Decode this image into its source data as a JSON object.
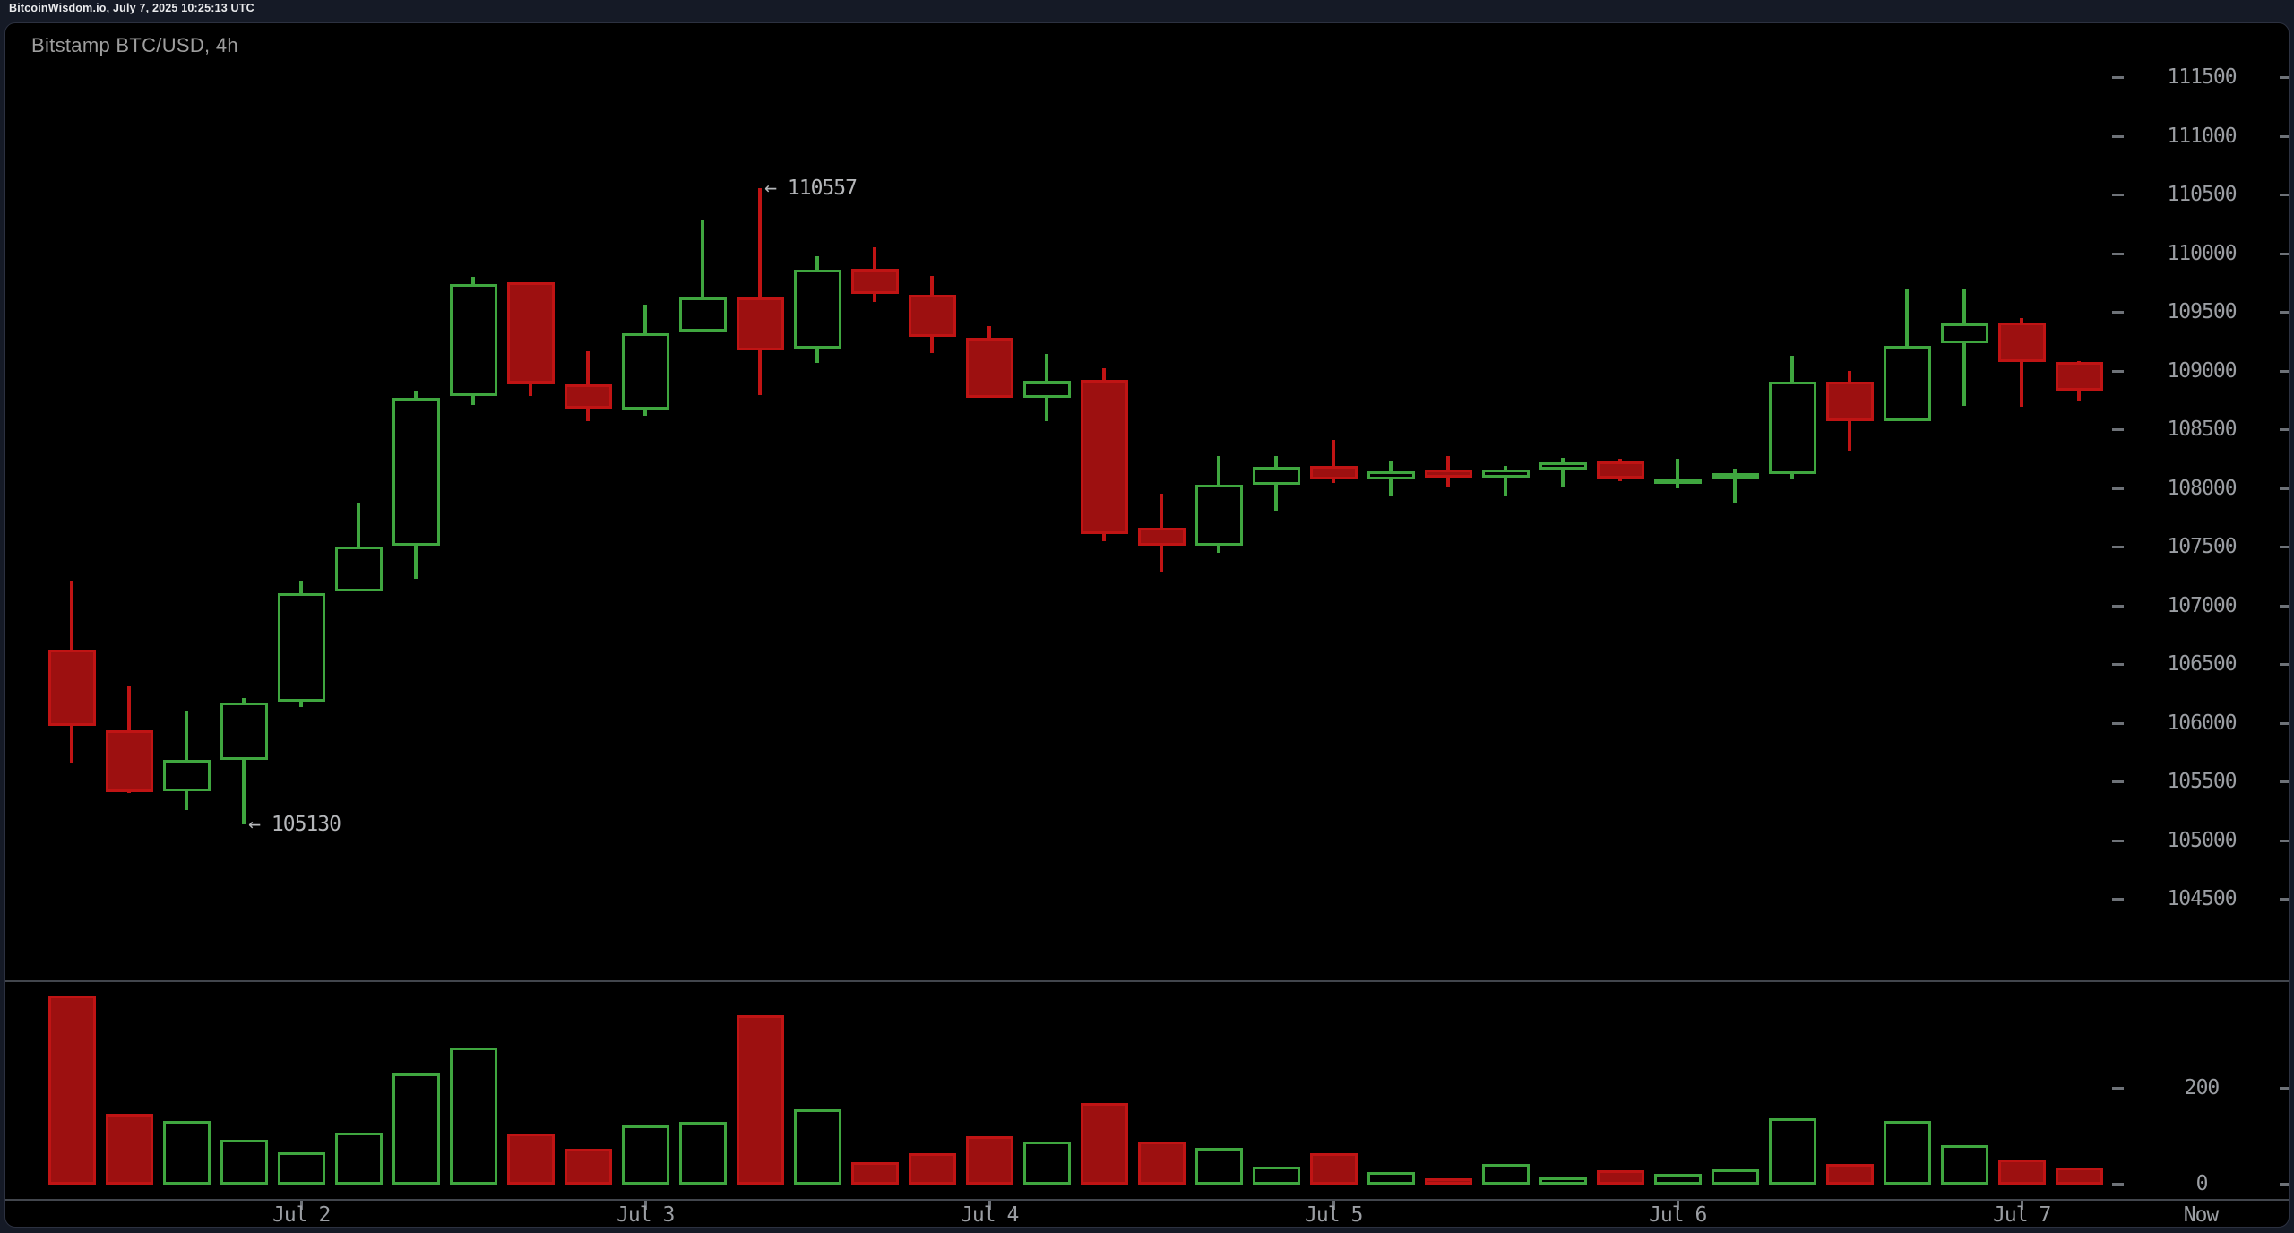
{
  "status_bar": {
    "text": "BitcoinWisdom.io, July 7, 2025 10:25:13 UTC"
  },
  "chart": {
    "title": "Bitstamp BTC/USD, 4h"
  },
  "colors": {
    "up_green": "#3fa63f",
    "down_red_border": "#c01414",
    "down_red_fill": "#9d1010",
    "background": "#000000",
    "page_background": "#151a26",
    "axis_text": "#9b9ea3",
    "separator": "#42464d",
    "annotation_text": "#b5b7ba"
  },
  "chart_data": {
    "type": "candlestick_with_volume",
    "title": "Bitstamp BTC/USD, 4h",
    "timeframe": "4h",
    "grid": "off",
    "legend": "none",
    "y_axis": {
      "side": "right",
      "range": [
        104100,
        111800
      ],
      "tick_step": 500,
      "tick_labels": [
        111500,
        111000,
        110500,
        110000,
        109500,
        109000,
        108500,
        108000,
        107500,
        107000,
        106500,
        106000,
        105500,
        105000,
        104500
      ]
    },
    "volume_axis": {
      "side": "right",
      "tick_labels": [
        200,
        0
      ]
    },
    "x_axis": {
      "day_labels": [
        {
          "label": "Jul 2",
          "candle_index": 5
        },
        {
          "label": "Jul 3",
          "candle_index": 11
        },
        {
          "label": "Jul 4",
          "candle_index": 17
        },
        {
          "label": "Jul 5",
          "candle_index": 23
        },
        {
          "label": "Jul 6",
          "candle_index": 29
        },
        {
          "label": "Jul 7",
          "candle_index": 35
        }
      ],
      "now_label": "Now"
    },
    "annotations": [
      {
        "text": "← 110557",
        "price": 110557,
        "candle_index": 13,
        "anchor": "high"
      },
      {
        "text": "← 105130",
        "price": 105130,
        "candle_index": 4,
        "anchor": "low"
      }
    ],
    "candles": [
      {
        "open": 106620,
        "high": 107210,
        "low": 105660,
        "close": 105975,
        "dir": "down",
        "volume": 393
      },
      {
        "open": 105935,
        "high": 106310,
        "low": 105400,
        "close": 105410,
        "dir": "down",
        "volume": 145
      },
      {
        "open": 105415,
        "high": 106105,
        "low": 105255,
        "close": 105685,
        "dir": "up",
        "volume": 130
      },
      {
        "open": 105685,
        "high": 106210,
        "low": 105130,
        "close": 106170,
        "dir": "up",
        "volume": 92
      },
      {
        "open": 106180,
        "high": 107210,
        "low": 106135,
        "close": 107105,
        "dir": "up",
        "volume": 65
      },
      {
        "open": 107120,
        "high": 107875,
        "low": 107120,
        "close": 107500,
        "dir": "up",
        "volume": 107
      },
      {
        "open": 107510,
        "high": 108830,
        "low": 107225,
        "close": 108765,
        "dir": "up",
        "volume": 230
      },
      {
        "open": 108780,
        "high": 109800,
        "low": 108705,
        "close": 109735,
        "dir": "up",
        "volume": 285
      },
      {
        "open": 109750,
        "high": 109750,
        "low": 108785,
        "close": 108890,
        "dir": "down",
        "volume": 104
      },
      {
        "open": 108880,
        "high": 109165,
        "low": 108570,
        "close": 108675,
        "dir": "down",
        "volume": 72
      },
      {
        "open": 108670,
        "high": 109560,
        "low": 108615,
        "close": 109320,
        "dir": "up",
        "volume": 122
      },
      {
        "open": 109330,
        "high": 110285,
        "low": 109330,
        "close": 109625,
        "dir": "up",
        "volume": 129
      },
      {
        "open": 109625,
        "high": 110557,
        "low": 108790,
        "close": 109175,
        "dir": "down",
        "volume": 351
      },
      {
        "open": 109185,
        "high": 109970,
        "low": 109065,
        "close": 109855,
        "dir": "up",
        "volume": 156
      },
      {
        "open": 109865,
        "high": 110050,
        "low": 109585,
        "close": 109655,
        "dir": "down",
        "volume": 45
      },
      {
        "open": 109645,
        "high": 109805,
        "low": 109150,
        "close": 109285,
        "dir": "down",
        "volume": 64
      },
      {
        "open": 109280,
        "high": 109375,
        "low": 108770,
        "close": 108770,
        "dir": "down",
        "volume": 100
      },
      {
        "open": 108770,
        "high": 109140,
        "low": 108565,
        "close": 108910,
        "dir": "up",
        "volume": 88
      },
      {
        "open": 108920,
        "high": 109020,
        "low": 107545,
        "close": 107605,
        "dir": "down",
        "volume": 168
      },
      {
        "open": 107660,
        "high": 107950,
        "low": 107290,
        "close": 107505,
        "dir": "down",
        "volume": 88
      },
      {
        "open": 107505,
        "high": 108270,
        "low": 107445,
        "close": 108025,
        "dir": "up",
        "volume": 75
      },
      {
        "open": 108030,
        "high": 108270,
        "low": 107805,
        "close": 108180,
        "dir": "up",
        "volume": 36
      },
      {
        "open": 108185,
        "high": 108410,
        "low": 108040,
        "close": 108070,
        "dir": "down",
        "volume": 64
      },
      {
        "open": 108070,
        "high": 108235,
        "low": 107925,
        "close": 108145,
        "dir": "up",
        "volume": 24
      },
      {
        "open": 108155,
        "high": 108270,
        "low": 108010,
        "close": 108085,
        "dir": "down",
        "volume": 11
      },
      {
        "open": 108090,
        "high": 108190,
        "low": 107925,
        "close": 108160,
        "dir": "up",
        "volume": 41
      },
      {
        "open": 108160,
        "high": 108255,
        "low": 108015,
        "close": 108215,
        "dir": "up",
        "volume": 13
      },
      {
        "open": 108225,
        "high": 108250,
        "low": 108060,
        "close": 108080,
        "dir": "down",
        "volume": 28
      },
      {
        "open": 108060,
        "high": 108250,
        "low": 107995,
        "close": 108080,
        "dir": "up",
        "volume": 20
      },
      {
        "open": 108110,
        "high": 108165,
        "low": 107875,
        "close": 108125,
        "dir": "up",
        "volume": 30
      },
      {
        "open": 108115,
        "high": 109125,
        "low": 108080,
        "close": 108905,
        "dir": "up",
        "volume": 137
      },
      {
        "open": 108905,
        "high": 108995,
        "low": 108320,
        "close": 108565,
        "dir": "down",
        "volume": 42
      },
      {
        "open": 108565,
        "high": 109700,
        "low": 108565,
        "close": 109210,
        "dir": "up",
        "volume": 131
      },
      {
        "open": 109230,
        "high": 109700,
        "low": 108695,
        "close": 109400,
        "dir": "up",
        "volume": 81
      },
      {
        "open": 109405,
        "high": 109445,
        "low": 108690,
        "close": 109070,
        "dir": "down",
        "volume": 51
      },
      {
        "open": 109070,
        "high": 109080,
        "low": 108745,
        "close": 108830,
        "dir": "down",
        "volume": 34
      }
    ]
  }
}
